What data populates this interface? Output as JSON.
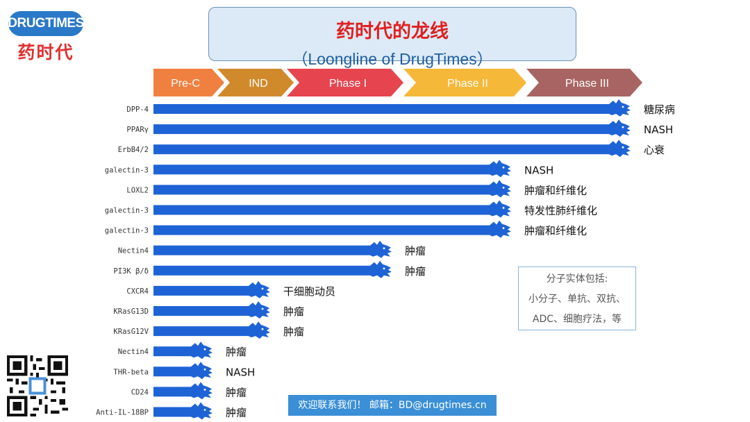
{
  "brand": {
    "logo_en": "DRUGTIMES",
    "logo_cn": "药时代"
  },
  "title": {
    "cn": "药时代的龙线",
    "en": "（Loongline of DrugTimes）"
  },
  "note": {
    "line1": "分子实体包括:",
    "line2": "小分子、单抗、双抗、",
    "line3": "ADC、细胞疗法，等"
  },
  "contact": "欢迎联系我们！ 邮箱：BD@drugtimes.cn",
  "colors": {
    "bar": "#1e63d6",
    "prec": "#f08040",
    "ind": "#d08a2c",
    "phase1": "#e64550",
    "phase2": "#f6b838",
    "phase3": "#a86462"
  },
  "chart_data": {
    "type": "bar",
    "orientation": "horizontal",
    "phases": [
      "Pre-C",
      "IND",
      "Phase I",
      "Phase II",
      "Phase III"
    ],
    "rows": [
      {
        "target": "DPP-4",
        "stage": "Phase III",
        "indication": "糖尿病"
      },
      {
        "target": "PPARγ",
        "stage": "Phase III",
        "indication": "NASH"
      },
      {
        "target": "ErbB4/2",
        "stage": "Phase III",
        "indication": "心衰"
      },
      {
        "target": "galectin-3",
        "stage": "Phase II",
        "indication": "NASH"
      },
      {
        "target": "LOXL2",
        "stage": "Phase II",
        "indication": "肿瘤和纤维化"
      },
      {
        "target": "galectin-3",
        "stage": "Phase II",
        "indication": "特发性肺纤维化"
      },
      {
        "target": "galectin-3",
        "stage": "Phase II",
        "indication": "肿瘤和纤维化"
      },
      {
        "target": "Nectin4",
        "stage": "Phase I",
        "indication": "肿瘤"
      },
      {
        "target": "PI3K β/δ",
        "stage": "Phase I",
        "indication": "肿瘤"
      },
      {
        "target": "CXCR4",
        "stage": "IND",
        "indication": "干细胞动员"
      },
      {
        "target": "KRasG13D",
        "stage": "IND",
        "indication": "肿瘤"
      },
      {
        "target": "KRasG12V",
        "stage": "IND",
        "indication": "肿瘤"
      },
      {
        "target": "Nectin4",
        "stage": "Pre-C",
        "indication": "肿瘤"
      },
      {
        "target": "THR-beta",
        "stage": "Pre-C",
        "indication": "NASH"
      },
      {
        "target": "CD24",
        "stage": "Pre-C",
        "indication": "肿瘤"
      },
      {
        "target": "Anti-IL-18BP",
        "stage": "Pre-C",
        "indication": "肿瘤"
      }
    ]
  }
}
